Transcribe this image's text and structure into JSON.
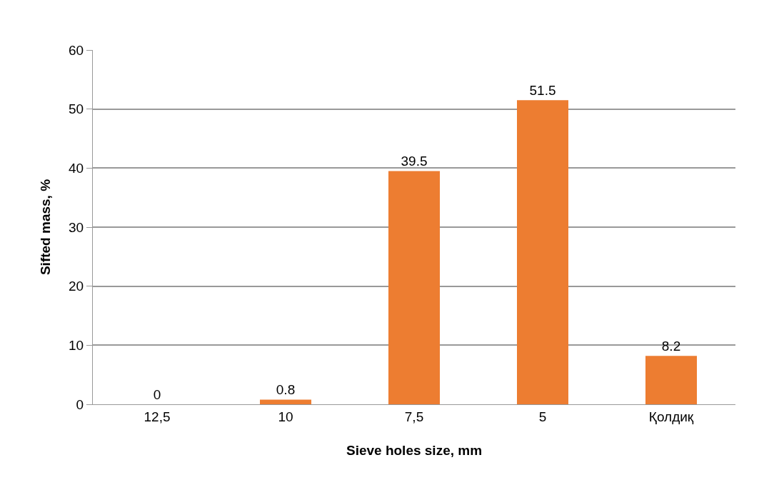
{
  "chart_data": {
    "type": "bar",
    "xlabel": "Sieve holes size, mm",
    "ylabel": "Sifted mass, %",
    "categories": [
      "12,5",
      "10",
      "7,5",
      "5",
      "Қолдиқ"
    ],
    "values": [
      0,
      0.8,
      39.5,
      51.5,
      8.2
    ],
    "color": "#ed7d31",
    "ylim": [
      0,
      60
    ],
    "yticks": [
      0,
      10,
      20,
      30,
      40,
      50,
      60
    ],
    "grid": "y",
    "data_labels": true
  }
}
